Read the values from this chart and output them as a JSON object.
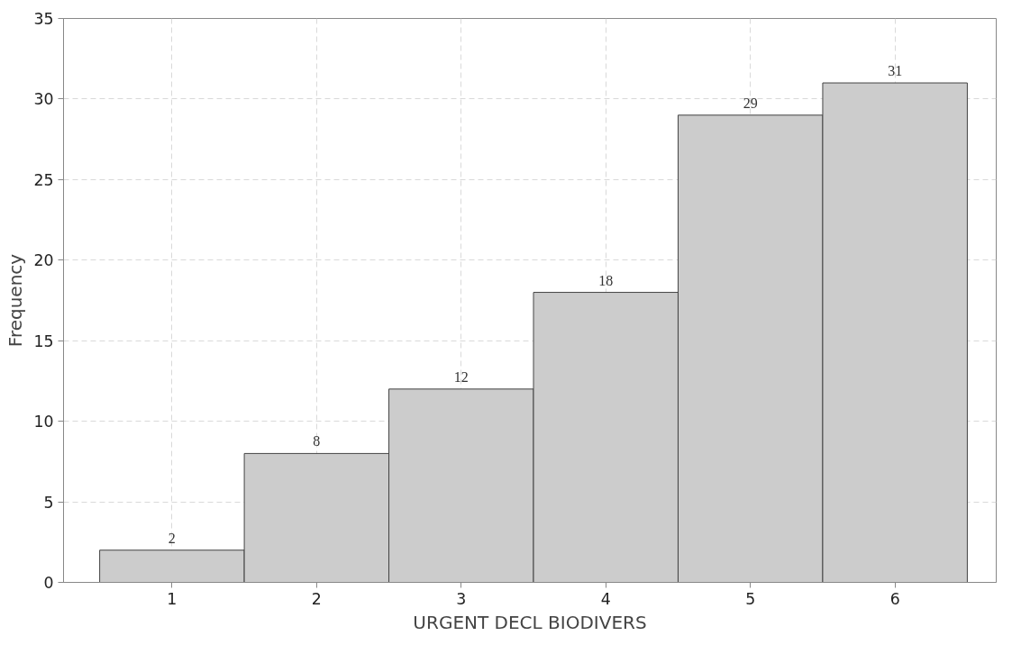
{
  "chart_data": {
    "type": "histogram",
    "xlabel": "URGENT DECL BIODIVERS",
    "ylabel": "Frequency",
    "bins": [
      0.5,
      1.5,
      2.5,
      3.5,
      4.5,
      5.5,
      6.5
    ],
    "values": [
      2,
      8,
      12,
      18,
      29,
      31
    ],
    "color": "#cccccc",
    "xlim": [
      0.25,
      6.7
    ],
    "xticks": [
      1,
      2,
      3,
      4,
      5,
      6
    ],
    "ylim": [
      0,
      35
    ],
    "yticks": [
      0,
      5,
      10,
      15,
      20,
      25,
      30,
      35
    ],
    "grid": true,
    "data_labels": true,
    "line_style": "dashed"
  }
}
